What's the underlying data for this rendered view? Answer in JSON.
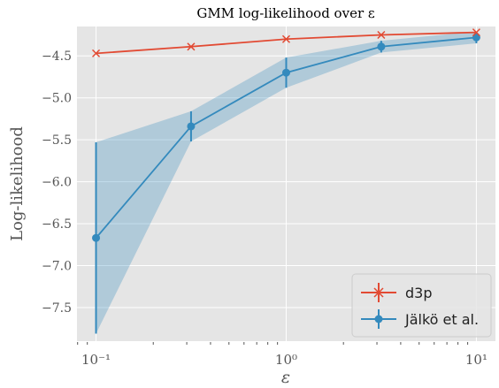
{
  "chart_data": {
    "type": "line",
    "title": "GMM log-likelihood over ε",
    "xlabel": "ε",
    "ylabel": "Log-likelihood",
    "xscale": "log",
    "xlim": [
      0.0794,
      12.6
    ],
    "ylim": [
      -7.9,
      -4.15
    ],
    "grid": true,
    "legend_position": "lower-right",
    "x_tick_labels": [
      {
        "value": 0.1,
        "label": "10⁻¹"
      },
      {
        "value": 1,
        "label": "10⁰"
      },
      {
        "value": 10,
        "label": "10¹"
      }
    ],
    "y_tick_labels": [
      {
        "value": -4.5,
        "label": "−4.5"
      },
      {
        "value": -5.0,
        "label": "−5.0"
      },
      {
        "value": -5.5,
        "label": "−5.5"
      },
      {
        "value": -6.0,
        "label": "−6.0"
      },
      {
        "value": -6.5,
        "label": "−6.5"
      },
      {
        "value": -7.0,
        "label": "−7.0"
      },
      {
        "value": -7.5,
        "label": "−7.5"
      }
    ],
    "series": [
      {
        "name": "d3p",
        "color": "#E24A33",
        "marker": "x",
        "x": [
          0.1,
          0.316,
          1,
          3.16,
          10
        ],
        "y": [
          -4.47,
          -4.39,
          -4.3,
          -4.25,
          -4.22
        ],
        "yerr": [
          0.005,
          0.005,
          0.005,
          0.005,
          0.005
        ]
      },
      {
        "name": "Jälkö et al.",
        "color": "#348ABD",
        "marker": "o",
        "x": [
          0.1,
          0.316,
          1,
          3.16,
          10
        ],
        "y": [
          -6.67,
          -5.34,
          -4.7,
          -4.39,
          -4.28
        ],
        "yerr": [
          1.14,
          0.18,
          0.18,
          0.07,
          0.07
        ]
      }
    ]
  }
}
